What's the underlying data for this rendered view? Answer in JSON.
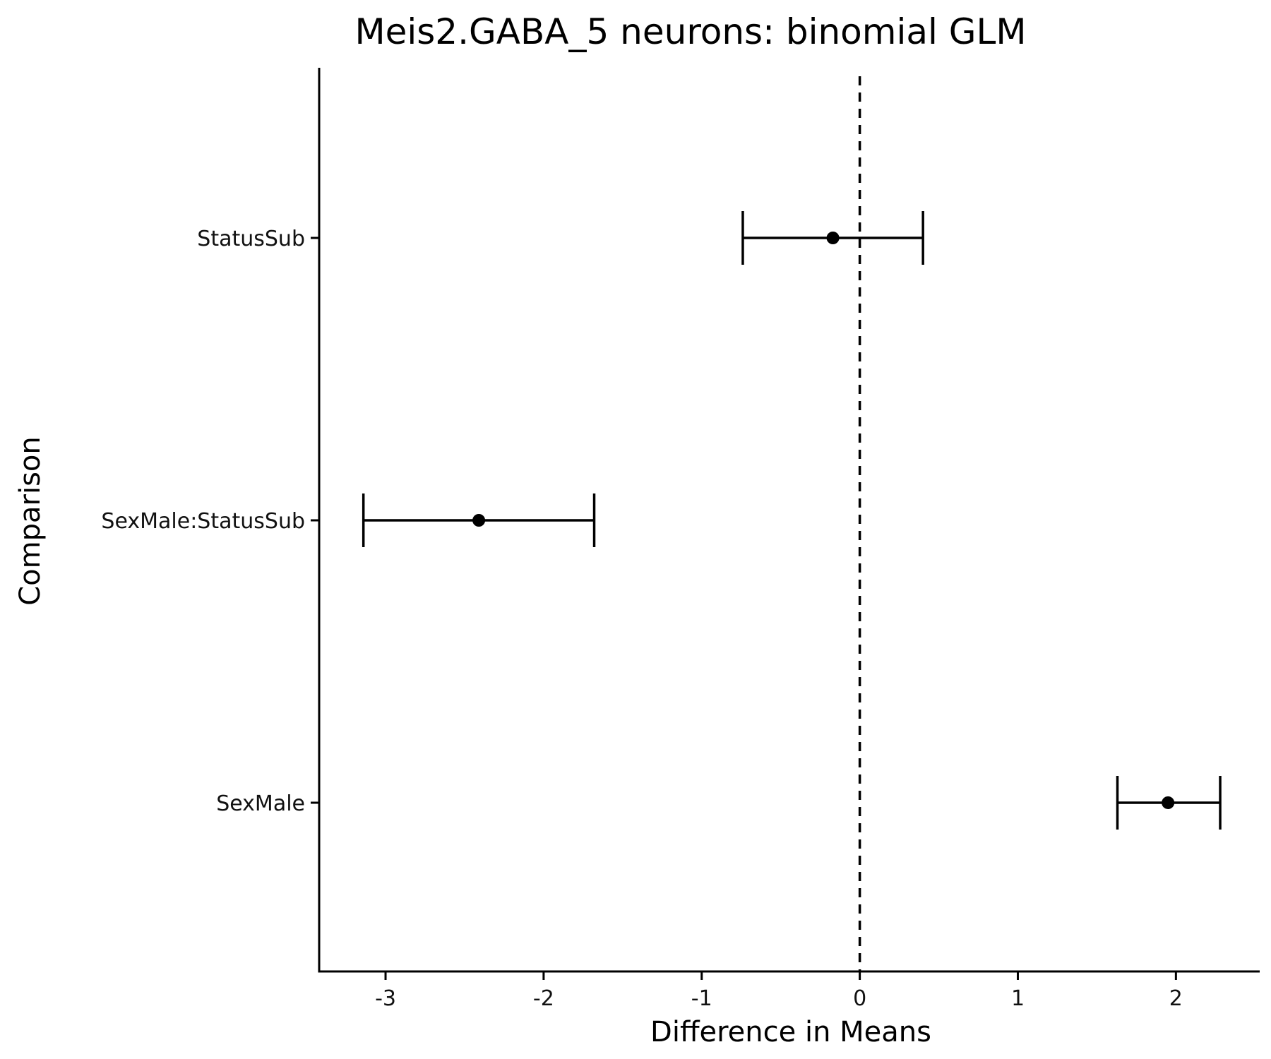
{
  "chart_data": {
    "type": "errorbar",
    "title": "Meis2.GABA_5 neurons: binomial GLM",
    "xlabel": "Difference in Means",
    "ylabel": "Comparison",
    "xlim": [
      -3.42,
      2.53
    ],
    "x_ticks": [
      -3,
      -2,
      -1,
      0,
      1,
      2
    ],
    "x_tick_labels": [
      "-3",
      "-2",
      "-1",
      "0",
      "1",
      "2"
    ],
    "reference_line": {
      "x": 0,
      "style": "dashed"
    },
    "grid": false,
    "categories": [
      "StatusSub",
      "SexMale:StatusSub",
      "SexMale"
    ],
    "series": [
      {
        "estimate": [
          -0.17,
          -2.41,
          1.95
        ],
        "lower": [
          -0.74,
          -3.14,
          1.63
        ],
        "upper": [
          0.4,
          -1.68,
          2.28
        ]
      }
    ]
  }
}
